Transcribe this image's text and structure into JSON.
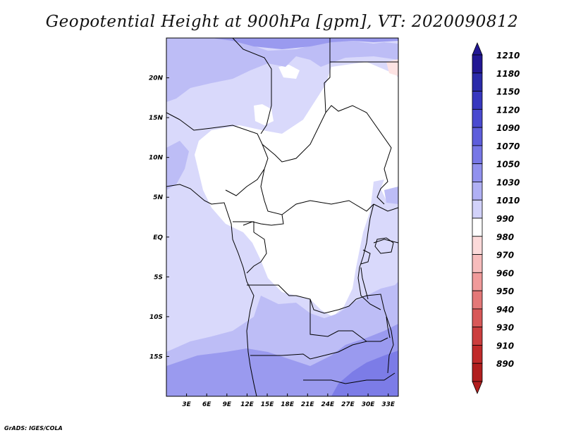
{
  "title": "Geopotential Height at 900hPa [gpm], VT: 2020090812",
  "credit": "GrADS: IGES/COLA",
  "map": {
    "lat_ticks": [
      "20N",
      "15N",
      "10N",
      "5N",
      "EQ",
      "5S",
      "10S",
      "15S"
    ],
    "lat_values": [
      20,
      15,
      10,
      5,
      0,
      -5,
      -10,
      -15
    ],
    "lon_ticks": [
      "3E",
      "6E",
      "9E",
      "12E",
      "15E",
      "18E",
      "21E",
      "24E",
      "27E",
      "30E",
      "33E"
    ],
    "lon_values": [
      3,
      6,
      9,
      12,
      15,
      18,
      21,
      24,
      27,
      30,
      33
    ],
    "lat_range": [
      -20,
      25
    ],
    "lon_range": [
      0,
      34.5
    ]
  },
  "colorbar": {
    "labels": [
      "1210",
      "1180",
      "1150",
      "1120",
      "1090",
      "1070",
      "1050",
      "1030",
      "1010",
      "990",
      "980",
      "970",
      "960",
      "950",
      "940",
      "930",
      "910",
      "890"
    ],
    "colors": [
      "#221793",
      "#2a2aa9",
      "#3737bf",
      "#4a4ad0",
      "#5e5edb",
      "#7777e6",
      "#9191ee",
      "#b0b0f4",
      "#d2d2fa",
      "#ffffff",
      "#fcdada",
      "#f7bcbc",
      "#f09a9a",
      "#e47878",
      "#d85858",
      "#cc3e3e",
      "#c02a2a",
      "#b11e1e"
    ]
  },
  "field_colors": {
    "c1010": "#d9d9fb",
    "c1030": "#bdbdf6",
    "c1050": "#9a9aef",
    "c1070": "#7c7ce7",
    "c990": "#fde3e3"
  }
}
